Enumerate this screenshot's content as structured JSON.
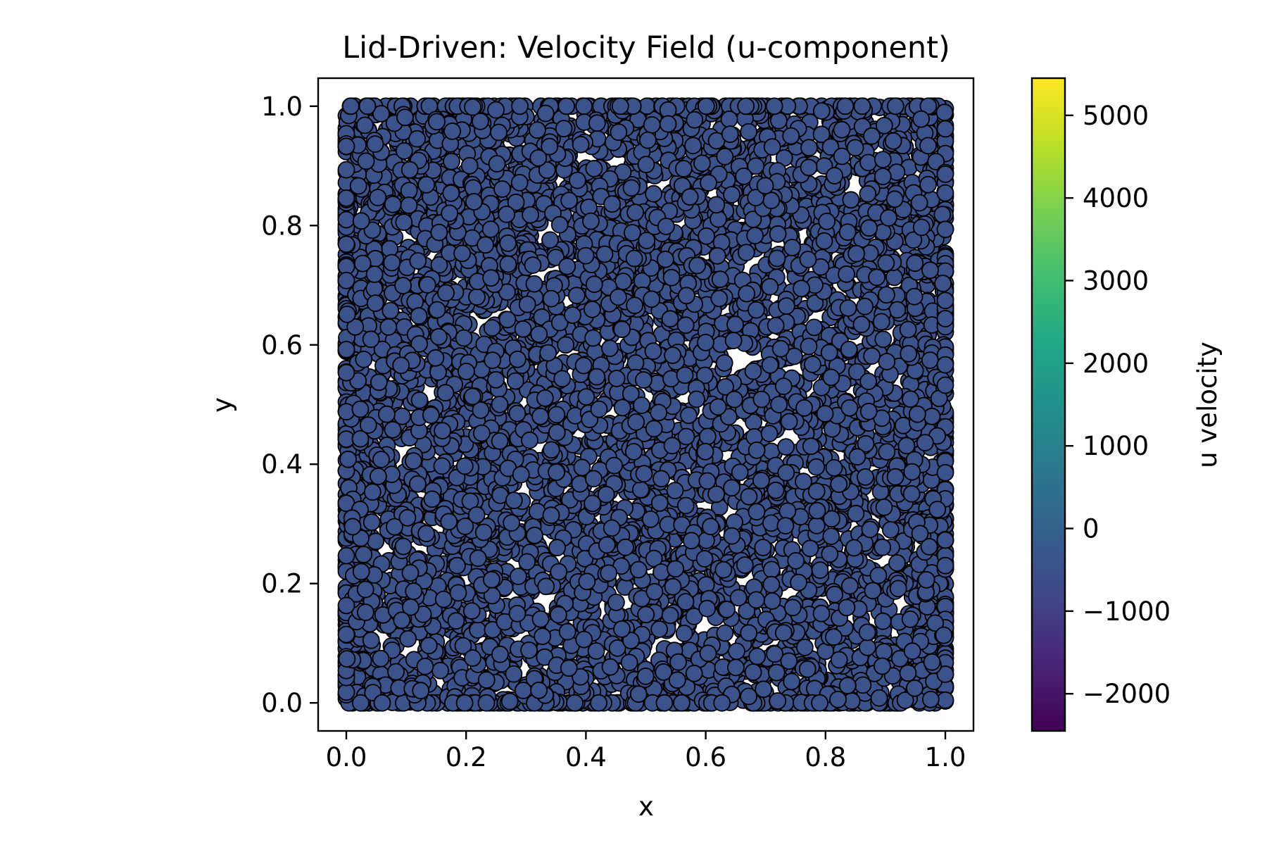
{
  "chart_data": {
    "type": "scatter",
    "title": "Lid-Driven: Velocity Field (u-component)",
    "xlabel": "x",
    "ylabel": "y",
    "xlim": [
      -0.047,
      1.047
    ],
    "ylim": [
      -0.047,
      1.047
    ],
    "xticks": [
      "0.0",
      "0.2",
      "0.4",
      "0.6",
      "0.8",
      "1.0"
    ],
    "yticks": [
      "0.0",
      "0.2",
      "0.4",
      "0.6",
      "0.8",
      "1.0"
    ],
    "xtick_values": [
      0.0,
      0.2,
      0.4,
      0.6,
      0.8,
      1.0
    ],
    "ytick_values": [
      0.0,
      0.2,
      0.4,
      0.6,
      0.8,
      1.0
    ],
    "point_domain": {
      "x": [
        0.0,
        1.0
      ],
      "y": [
        0.0,
        1.0
      ]
    },
    "point_value": 0,
    "point_count_estimate": 6000,
    "marker_face_color": "#3b528b",
    "marker_edge_color": "#000000",
    "grid": false,
    "colorbar": {
      "label": "u velocity",
      "cmap": "viridis",
      "range": [
        -2450,
        5450
      ],
      "tick_values": [
        5000,
        4000,
        3000,
        2000,
        1000,
        0,
        -1000,
        -2000
      ],
      "tick_labels": [
        "5000",
        "4000",
        "3000",
        "2000",
        "1000",
        "0",
        "−1000",
        "−2000"
      ]
    }
  }
}
